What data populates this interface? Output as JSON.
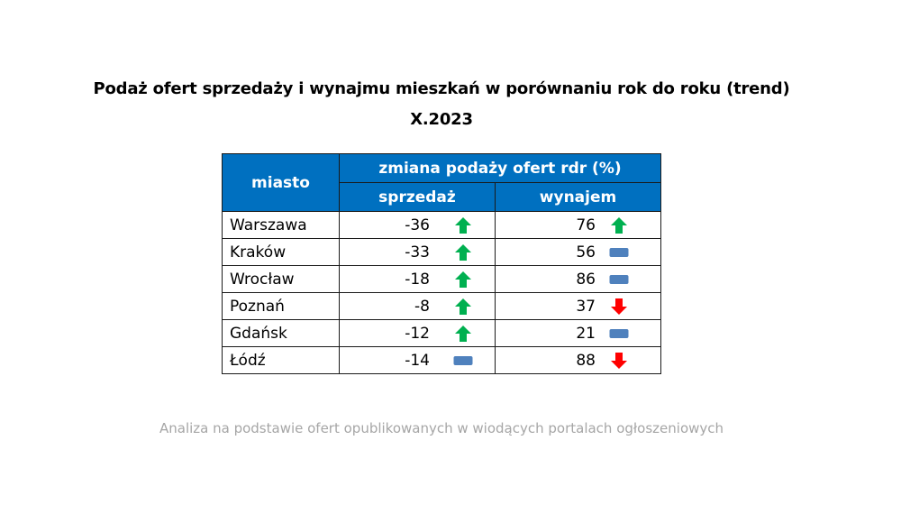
{
  "title": {
    "line1": "Podaż ofert sprzedaży i wynajmu mieszkań w porównaniu rok do roku (trend)",
    "line2": "X.2023"
  },
  "table": {
    "header": {
      "city": "miasto",
      "group": "zmiana podaży ofert rdr (%)",
      "sale": "sprzedaż",
      "rent": "wynajem"
    },
    "rows": [
      {
        "city": "Warszawa",
        "sale": "-36",
        "sale_trend": "up-arrow",
        "rent": "76",
        "rent_trend": "up-arrow"
      },
      {
        "city": "Kraków",
        "sale": "-33",
        "sale_trend": "up-arrow",
        "rent": "56",
        "rent_trend": "flat-bar"
      },
      {
        "city": "Wrocław",
        "sale": "-18",
        "sale_trend": "up-arrow",
        "rent": "86",
        "rent_trend": "flat-bar"
      },
      {
        "city": "Poznań",
        "sale": "-8",
        "sale_trend": "up-arrow",
        "rent": "37",
        "rent_trend": "down-arrow"
      },
      {
        "city": "Gdańsk",
        "sale": "-12",
        "sale_trend": "up-arrow",
        "rent": "21",
        "rent_trend": "flat-bar"
      },
      {
        "city": "Łódź",
        "sale": "-14",
        "sale_trend": "flat-bar",
        "rent": "88",
        "rent_trend": "down-arrow"
      }
    ]
  },
  "footnote": "Analiza na podstawie ofert opublikowanych w wiodących portalach ogłoszeniowych",
  "colors": {
    "header_bg": "#0070c0",
    "header_text": "#ffffff",
    "up": "#00b050",
    "down": "#ff0000",
    "flat": "#4f81bd",
    "footnote": "#a6a6a6"
  }
}
